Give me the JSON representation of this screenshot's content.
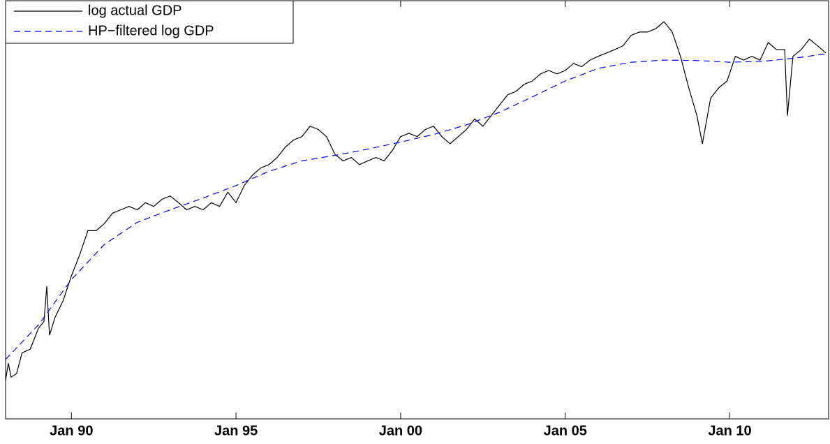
{
  "chart_data": {
    "type": "line",
    "xlim": [
      "1988-01",
      "2013-01"
    ],
    "ylim": [
      0,
      100
    ],
    "xticks": [
      {
        "value": "1990-01",
        "label": "Jan 90"
      },
      {
        "value": "1995-01",
        "label": "Jan 95"
      },
      {
        "value": "2000-01",
        "label": "Jan 00"
      },
      {
        "value": "2005-01",
        "label": "Jan 05"
      },
      {
        "value": "2010-01",
        "label": "Jan 10"
      }
    ],
    "legend": "upper left",
    "series": [
      {
        "name": "log actual GDP",
        "color": "#000000",
        "dash": "solid",
        "x": [
          "1988-01",
          "1988-02",
          "1988-03",
          "1988-05",
          "1988-07",
          "1988-10",
          "1989-01",
          "1989-03",
          "1989-04",
          "1989-05",
          "1989-07",
          "1989-10",
          "1990-01",
          "1990-04",
          "1990-07",
          "1990-10",
          "1991-01",
          "1991-04",
          "1991-07",
          "1991-10",
          "1992-01",
          "1992-04",
          "1992-07",
          "1992-10",
          "1993-01",
          "1993-04",
          "1993-07",
          "1993-10",
          "1994-01",
          "1994-04",
          "1994-07",
          "1994-10",
          "1995-01",
          "1995-04",
          "1995-07",
          "1995-10",
          "1996-01",
          "1996-04",
          "1996-07",
          "1996-10",
          "1997-01",
          "1997-04",
          "1997-07",
          "1997-10",
          "1998-01",
          "1998-04",
          "1998-07",
          "1998-10",
          "1999-01",
          "1999-04",
          "1999-07",
          "1999-10",
          "2000-01",
          "2000-04",
          "2000-07",
          "2000-10",
          "2001-01",
          "2001-04",
          "2001-07",
          "2001-10",
          "2002-01",
          "2002-04",
          "2002-07",
          "2002-10",
          "2003-01",
          "2003-04",
          "2003-07",
          "2003-10",
          "2004-01",
          "2004-04",
          "2004-07",
          "2004-10",
          "2005-01",
          "2005-04",
          "2005-07",
          "2005-10",
          "2006-01",
          "2006-04",
          "2006-07",
          "2006-10",
          "2007-01",
          "2007-04",
          "2007-07",
          "2007-10",
          "2008-01",
          "2008-04",
          "2008-07",
          "2008-10",
          "2009-01",
          "2009-03",
          "2009-06",
          "2009-09",
          "2009-12",
          "2010-03",
          "2010-06",
          "2010-09",
          "2010-12",
          "2011-03",
          "2011-06",
          "2011-09",
          "2011-10",
          "2011-12",
          "2012-03",
          "2012-06",
          "2012-09",
          "2012-12"
        ],
        "values": [
          9.2,
          13.3,
          10,
          10.8,
          15.8,
          16.7,
          21.7,
          23.3,
          31.7,
          20,
          24.2,
          28.3,
          34.2,
          39.2,
          45,
          45,
          46.7,
          49.2,
          50,
          50.8,
          50,
          51.7,
          50.8,
          52.5,
          53.3,
          51.7,
          50,
          50.8,
          50,
          51.7,
          50.8,
          54.2,
          51.7,
          55.8,
          58.3,
          60,
          60.8,
          62.5,
          65,
          66.7,
          67.5,
          70,
          69.2,
          67.5,
          63.3,
          61.7,
          62.5,
          60.8,
          61.7,
          62.5,
          61.7,
          64.2,
          67.5,
          68.3,
          67.5,
          69.2,
          70,
          67.5,
          65.8,
          67.5,
          69.2,
          71.7,
          70,
          72.5,
          75,
          77.5,
          78.3,
          80,
          80.8,
          82.5,
          83.3,
          82.5,
          83.3,
          85,
          84.2,
          85.8,
          86.7,
          87.5,
          88.3,
          89.2,
          91.7,
          92.5,
          92.5,
          93.3,
          95,
          92.5,
          86.7,
          79.2,
          72.5,
          65.8,
          76.7,
          79.2,
          80.8,
          86.7,
          85.8,
          86.7,
          85.8,
          90,
          88.3,
          88.3,
          72.5,
          86.7,
          88.3,
          90.8,
          89.2,
          87.5
        ]
      },
      {
        "name": "HP−filtered log GDP",
        "color": "#0000ff",
        "dash": "dashed",
        "x": [
          "1988-01",
          "1989-01",
          "1990-01",
          "1991-01",
          "1992-01",
          "1993-01",
          "1994-01",
          "1995-01",
          "1996-01",
          "1997-01",
          "1998-01",
          "1999-01",
          "2000-01",
          "2001-01",
          "2002-01",
          "2003-01",
          "2004-01",
          "2005-01",
          "2006-01",
          "2007-01",
          "2008-01",
          "2009-01",
          "2010-01",
          "2011-01",
          "2012-01",
          "2012-12"
        ],
        "values": [
          14.2,
          22.5,
          33.3,
          41.7,
          47,
          50,
          52.8,
          55.8,
          59.2,
          61.7,
          63,
          64.5,
          66.2,
          68,
          70.3,
          73.3,
          77,
          80.8,
          83.8,
          85.3,
          85.8,
          85.7,
          85.3,
          85.5,
          86.3,
          87.3
        ]
      }
    ]
  }
}
